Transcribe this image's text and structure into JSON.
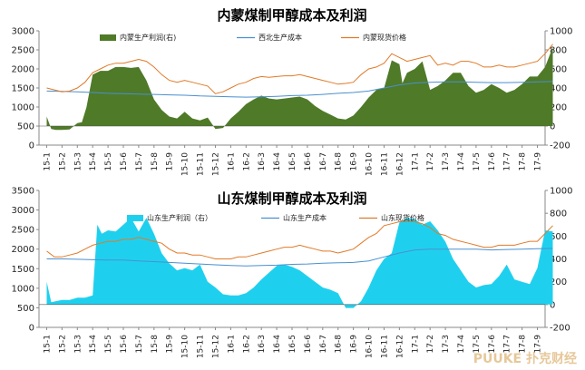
{
  "chart_data": [
    {
      "type": "area",
      "title": "内蒙煤制甲醇成本及利润",
      "colors": {
        "profit": "#4f7a28",
        "cost": "#4a90d0",
        "price": "#e07a28"
      },
      "y_left": {
        "ticks": [
          "0",
          "500",
          "1000",
          "1500",
          "2000",
          "2500",
          "3000"
        ],
        "range": [
          0,
          3000
        ]
      },
      "y_right": {
        "ticks": [
          "-200",
          "0",
          "200",
          "400",
          "600",
          "800",
          "1000"
        ],
        "range": [
          -200,
          1000
        ]
      },
      "x_ticks": [
        "15-1",
        "15-2",
        "15-3",
        "15-4",
        "15-5",
        "15-6",
        "15-7",
        "15-8",
        "15-9",
        "15-10",
        "15-11",
        "15-12",
        "16-1",
        "16-2",
        "16-3",
        "16-4",
        "16-5",
        "16-6",
        "16-7",
        "16-8",
        "16-9",
        "16-10",
        "16-11",
        "16-12",
        "17-1",
        "17-2",
        "17-3",
        "17-4",
        "17-5",
        "17-6",
        "17-7",
        "17-8",
        "17-9"
      ],
      "series": [
        {
          "name": "内蒙生产利润(右)",
          "kind": "area",
          "axis": "right",
          "x": [
            0,
            0.3,
            0.6,
            1,
            1.5,
            2,
            2.3,
            2.6,
            3,
            3.5,
            4,
            4.5,
            5,
            5.5,
            6,
            6.5,
            7,
            7.5,
            8,
            8.5,
            9,
            9.5,
            10,
            10.5,
            11,
            11.5,
            12,
            12.5,
            13,
            13.5,
            14,
            14.5,
            15,
            15.5,
            16,
            16.5,
            17,
            17.5,
            18,
            18.5,
            19,
            19.5,
            20,
            20.5,
            21,
            21.5,
            22,
            22.5,
            23,
            23.2,
            23.5,
            24,
            24.5,
            25,
            25.5,
            26,
            26.5,
            27,
            27.5,
            28,
            28.5,
            29,
            29.5,
            30,
            30.5,
            31,
            31.5,
            32,
            32.5,
            33
          ],
          "values": [
            100,
            -30,
            -40,
            -40,
            -35,
            30,
            40,
            200,
            540,
            580,
            580,
            620,
            620,
            610,
            620,
            480,
            280,
            170,
            100,
            80,
            150,
            80,
            60,
            90,
            -30,
            -20,
            80,
            150,
            230,
            280,
            320,
            290,
            280,
            290,
            300,
            310,
            280,
            210,
            160,
            120,
            80,
            70,
            110,
            200,
            300,
            380,
            400,
            690,
            650,
            450,
            560,
            600,
            680,
            380,
            420,
            480,
            560,
            560,
            420,
            350,
            380,
            440,
            400,
            350,
            380,
            440,
            520,
            520,
            620,
            830
          ]
        },
        {
          "name": "西北生产成本",
          "kind": "line",
          "axis": "left",
          "x": [
            0,
            1,
            2,
            3,
            4,
            5,
            6,
            7,
            8,
            9,
            10,
            11,
            12,
            13,
            14,
            15,
            16,
            17,
            18,
            19,
            20,
            21,
            22,
            23,
            24,
            25,
            26,
            27,
            28,
            29,
            30,
            31,
            32,
            33
          ],
          "values": [
            1420,
            1410,
            1400,
            1380,
            1360,
            1350,
            1340,
            1330,
            1320,
            1310,
            1290,
            1280,
            1270,
            1260,
            1270,
            1280,
            1300,
            1310,
            1330,
            1360,
            1380,
            1420,
            1500,
            1580,
            1630,
            1650,
            1660,
            1660,
            1650,
            1640,
            1640,
            1650,
            1660,
            1670
          ]
        },
        {
          "name": "内蒙现货价格",
          "kind": "line",
          "axis": "left",
          "x": [
            0,
            0.5,
            1,
            1.5,
            2,
            2.5,
            3,
            3.5,
            4,
            4.5,
            5,
            5.5,
            6,
            6.5,
            7,
            7.5,
            8,
            8.5,
            9,
            9.5,
            10,
            10.5,
            11,
            11.5,
            12,
            12.5,
            13,
            13.5,
            14,
            14.5,
            15,
            15.5,
            16,
            16.5,
            17,
            17.5,
            18,
            18.5,
            19,
            19.5,
            20,
            20.5,
            21,
            21.5,
            22,
            22.5,
            23,
            23.5,
            24,
            24.5,
            25,
            25.5,
            26,
            26.5,
            27,
            27.5,
            28,
            28.5,
            29,
            29.5,
            30,
            30.5,
            31,
            31.5,
            32,
            32.5,
            33
          ],
          "values": [
            1500,
            1450,
            1400,
            1420,
            1500,
            1650,
            1900,
            2000,
            2100,
            2150,
            2150,
            2200,
            2250,
            2200,
            2050,
            1850,
            1700,
            1650,
            1700,
            1650,
            1600,
            1550,
            1350,
            1400,
            1500,
            1600,
            1650,
            1750,
            1800,
            1780,
            1800,
            1820,
            1820,
            1850,
            1800,
            1750,
            1700,
            1650,
            1600,
            1620,
            1650,
            1850,
            2000,
            2050,
            2150,
            2400,
            2300,
            2200,
            2250,
            2300,
            2350,
            2100,
            2150,
            2100,
            2200,
            2200,
            2150,
            2050,
            2050,
            2100,
            2050,
            2050,
            2100,
            2150,
            2200,
            2400,
            2650
          ]
        }
      ]
    },
    {
      "type": "area",
      "title": "山东煤制甲醇成本及利润",
      "colors": {
        "profit": "#1fd0ee",
        "cost": "#4a90d0",
        "price": "#e07a28"
      },
      "y_left": {
        "ticks": [
          "0",
          "500",
          "1000",
          "1500",
          "2000",
          "2500",
          "3000",
          "3500"
        ],
        "range": [
          0,
          3500
        ]
      },
      "y_right": {
        "ticks": [
          "-200",
          "0",
          "200",
          "400",
          "600",
          "800",
          "1000"
        ],
        "range": [
          -200,
          1000
        ]
      },
      "x_ticks": [
        "15-1",
        "15-2",
        "15-3",
        "15-4",
        "15-5",
        "15-6",
        "15-7",
        "15-8",
        "15-9",
        "15-10",
        "15-11",
        "15-12",
        "16-1",
        "16-2",
        "16-3",
        "16-4",
        "16-5",
        "16-6",
        "16-7",
        "16-8",
        "16-9",
        "16-10",
        "16-11",
        "16-12",
        "17-1",
        "17-2",
        "17-3",
        "17-4",
        "17-5",
        "17-6",
        "17-7",
        "17-8",
        "17-9"
      ],
      "series": [
        {
          "name": "山东生产利润（右）",
          "kind": "area",
          "axis": "right",
          "x": [
            0,
            0.3,
            0.6,
            1,
            1.5,
            2,
            2.5,
            3,
            3.3,
            3.6,
            4,
            4.5,
            5,
            5.5,
            6,
            6.5,
            7,
            7.5,
            8,
            8.5,
            9,
            9.5,
            10,
            10.5,
            11,
            11.5,
            12,
            12.5,
            13,
            13.5,
            14,
            14.5,
            15,
            15.5,
            16,
            16.5,
            17,
            17.5,
            18,
            18.5,
            19,
            19.5,
            20,
            20.5,
            21,
            21.5,
            22,
            22.5,
            23,
            23.5,
            24,
            24.5,
            25,
            25.5,
            26,
            26.5,
            27,
            27.5,
            28,
            28.5,
            29,
            29.5,
            30,
            30.5,
            31,
            31.5,
            32,
            32.5,
            33
          ],
          "values": [
            200,
            20,
            30,
            40,
            40,
            60,
            60,
            80,
            700,
            620,
            650,
            640,
            700,
            760,
            640,
            760,
            620,
            450,
            360,
            300,
            320,
            300,
            350,
            200,
            150,
            90,
            80,
            80,
            100,
            150,
            220,
            280,
            340,
            350,
            330,
            300,
            250,
            200,
            150,
            130,
            100,
            -30,
            -30,
            30,
            150,
            300,
            400,
            450,
            720,
            760,
            750,
            700,
            730,
            650,
            550,
            400,
            300,
            200,
            150,
            170,
            180,
            250,
            350,
            220,
            200,
            180,
            320,
            650,
            640
          ]
        },
        {
          "name": "山东生产成本",
          "kind": "line",
          "axis": "left",
          "x": [
            0,
            1,
            2,
            3,
            4,
            5,
            6,
            7,
            8,
            9,
            10,
            11,
            12,
            13,
            14,
            15,
            16,
            17,
            18,
            19,
            20,
            21,
            22,
            23,
            24,
            25,
            26,
            27,
            28,
            29,
            30,
            31,
            32,
            33
          ],
          "values": [
            1750,
            1750,
            1740,
            1730,
            1720,
            1720,
            1700,
            1680,
            1660,
            1640,
            1620,
            1600,
            1580,
            1570,
            1580,
            1590,
            1610,
            1620,
            1640,
            1650,
            1660,
            1700,
            1800,
            1900,
            1980,
            2000,
            2000,
            2000,
            2000,
            1980,
            1990,
            2000,
            2010,
            2020
          ]
        },
        {
          "name": "山东现货价格",
          "kind": "line",
          "axis": "left",
          "x": [
            0,
            0.5,
            1,
            1.5,
            2,
            2.5,
            3,
            3.5,
            4,
            4.5,
            5,
            5.5,
            6,
            6.5,
            7,
            7.5,
            8,
            8.5,
            9,
            9.5,
            10,
            10.5,
            11,
            11.5,
            12,
            12.5,
            13,
            13.5,
            14,
            14.5,
            15,
            15.5,
            16,
            16.5,
            17,
            17.5,
            18,
            18.5,
            19,
            19.5,
            20,
            20.5,
            21,
            21.5,
            22,
            22.5,
            23,
            23.5,
            24,
            24.5,
            25,
            25.5,
            26,
            26.5,
            27,
            27.5,
            28,
            28.5,
            29,
            29.5,
            30,
            30.5,
            31,
            31.5,
            32,
            32.5,
            33
          ],
          "values": [
            1950,
            1800,
            1800,
            1850,
            1900,
            2000,
            2100,
            2150,
            2200,
            2200,
            2250,
            2250,
            2300,
            2250,
            2200,
            2150,
            2000,
            1900,
            1900,
            1850,
            1850,
            1800,
            1750,
            1750,
            1750,
            1800,
            1800,
            1850,
            1900,
            1950,
            2000,
            2050,
            2050,
            2100,
            2050,
            2000,
            1950,
            1950,
            1900,
            1950,
            2000,
            2150,
            2300,
            2400,
            2600,
            2650,
            2700,
            2700,
            2700,
            2650,
            2550,
            2400,
            2350,
            2250,
            2200,
            2150,
            2100,
            2050,
            2050,
            2100,
            2100,
            2100,
            2150,
            2200,
            2200,
            2400,
            2600
          ]
        }
      ]
    }
  ],
  "watermark": "PUUKE 扑克财经"
}
